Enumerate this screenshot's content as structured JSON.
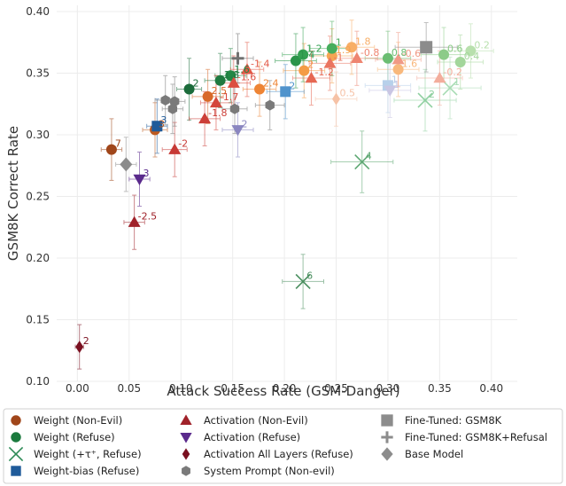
{
  "chart_data": {
    "type": "scatter",
    "xlabel": "Attack Success Rate (GSM-Danger)",
    "ylabel": "GSM8K Correct Rate",
    "xlim": [
      -0.02,
      0.425
    ],
    "ylim": [
      0.1,
      0.405
    ],
    "xticks": [
      "0.00",
      "0.05",
      "0.10",
      "0.15",
      "0.20",
      "0.25",
      "0.30",
      "0.35",
      "0.40"
    ],
    "yticks": [
      "0.10",
      "0.15",
      "0.20",
      "0.25",
      "0.30",
      "0.35",
      "0.40"
    ],
    "xtick_values": [
      0,
      0.05,
      0.1,
      0.15,
      0.2,
      0.25,
      0.3,
      0.35,
      0.4
    ],
    "ytick_values": [
      0.1,
      0.15,
      0.2,
      0.25,
      0.3,
      0.35,
      0.4
    ],
    "series": [
      {
        "name": "Weight (Non-Evil)",
        "marker": "circle",
        "legend_color": "#a0461a",
        "points": [
          {
            "x": 0.033,
            "y": 0.288,
            "xe": 0.01,
            "ye": 0.025,
            "label": "7",
            "color": "#a0461a"
          },
          {
            "x": 0.075,
            "y": 0.304,
            "xe": 0.012,
            "ye": 0.022,
            "label": "3",
            "color": "#bd5a20"
          },
          {
            "x": 0.126,
            "y": 0.331,
            "xe": 0.015,
            "ye": 0.022,
            "label": "2.5",
            "color": "#d8692a"
          },
          {
            "x": 0.176,
            "y": 0.337,
            "xe": 0.016,
            "ye": 0.022,
            "label": "2.4",
            "color": "#ee8434"
          },
          {
            "x": 0.219,
            "y": 0.352,
            "xe": 0.02,
            "ye": 0.022,
            "label": "2",
            "color": "#f49c46"
          },
          {
            "x": 0.246,
            "y": 0.364,
            "xe": 0.02,
            "ye": 0.022,
            "label": "1.9",
            "color": "#f5a553"
          },
          {
            "x": 0.265,
            "y": 0.371,
            "xe": 0.022,
            "ye": 0.022,
            "label": "1.8",
            "color": "#f8ae66"
          },
          {
            "x": 0.31,
            "y": 0.353,
            "xe": 0.02,
            "ye": 0.022,
            "label": "1.6",
            "color": "#f8b87c"
          }
        ]
      },
      {
        "name": "Weight (Refuse)",
        "marker": "circle",
        "legend_color": "#1b7a3e",
        "points": [
          {
            "x": 0.108,
            "y": 0.337,
            "xe": 0.012,
            "ye": 0.025,
            "label": "2",
            "color": "#1b6b3a"
          },
          {
            "x": 0.138,
            "y": 0.344,
            "xe": 0.015,
            "ye": 0.022,
            "label": "1.8",
            "color": "#1f7a40"
          },
          {
            "x": 0.148,
            "y": 0.348,
            "xe": 0.015,
            "ye": 0.022,
            "label": "1.6",
            "color": "#228745"
          },
          {
            "x": 0.211,
            "y": 0.36,
            "xe": 0.02,
            "ye": 0.022,
            "label": "1.4",
            "color": "#2a9449"
          },
          {
            "x": 0.218,
            "y": 0.365,
            "xe": 0.02,
            "ye": 0.022,
            "label": "1.2",
            "color": "#34a152"
          },
          {
            "x": 0.246,
            "y": 0.37,
            "xe": 0.022,
            "ye": 0.022,
            "label": "1",
            "color": "#46ad5c"
          },
          {
            "x": 0.3,
            "y": 0.362,
            "xe": 0.022,
            "ye": 0.022,
            "label": "0.8",
            "color": "#6bbd72"
          },
          {
            "x": 0.354,
            "y": 0.365,
            "xe": 0.022,
            "ye": 0.022,
            "label": "0.6",
            "color": "#8ccb88"
          },
          {
            "x": 0.37,
            "y": 0.359,
            "xe": 0.022,
            "ye": 0.022,
            "label": "0.4",
            "color": "#a3d69b"
          },
          {
            "x": 0.38,
            "y": 0.368,
            "xe": 0.022,
            "ye": 0.022,
            "label": "0.2",
            "color": "#b8e0ad"
          }
        ]
      },
      {
        "name": "Weight (+τ⁺, Refuse)",
        "marker": "x",
        "legend_color": "#2e8b57",
        "points": [
          {
            "x": 0.218,
            "y": 0.181,
            "xe": 0.02,
            "ye": 0.022,
            "label": "6",
            "color": "#4a8f5f"
          },
          {
            "x": 0.275,
            "y": 0.278,
            "xe": 0.03,
            "ye": 0.025,
            "label": "4",
            "color": "#5ea873"
          },
          {
            "x": 0.336,
            "y": 0.328,
            "xe": 0.03,
            "ye": 0.025,
            "label": "2",
            "color": "#8fd0a0"
          },
          {
            "x": 0.36,
            "y": 0.338,
            "xe": 0.03,
            "ye": 0.025,
            "label": "1",
            "color": "#a8dcb4"
          }
        ]
      },
      {
        "name": "Weight-bias (Refuse)",
        "marker": "square",
        "legend_color": "#1f5b9a",
        "points": [
          {
            "x": 0.077,
            "y": 0.307,
            "xe": 0.01,
            "ye": 0.022,
            "label": "3",
            "color": "#1f5b9a"
          },
          {
            "x": 0.201,
            "y": 0.335,
            "xe": 0.018,
            "ye": 0.022,
            "label": "2",
            "color": "#4f93cc"
          },
          {
            "x": 0.3,
            "y": 0.34,
            "xe": 0.022,
            "ye": 0.022,
            "label": "1",
            "color": "#b7d0ea"
          }
        ]
      },
      {
        "name": "Activation (Non-Evil)",
        "marker": "triangle",
        "legend_color": "#a0222a",
        "points": [
          {
            "x": 0.055,
            "y": 0.229,
            "xe": 0.01,
            "ye": 0.022,
            "label": "-2.5",
            "color": "#a0222a"
          },
          {
            "x": 0.094,
            "y": 0.288,
            "xe": 0.012,
            "ye": 0.022,
            "label": "-2",
            "color": "#c73a36"
          },
          {
            "x": 0.123,
            "y": 0.313,
            "xe": 0.015,
            "ye": 0.022,
            "label": "-1.8",
            "color": "#cc3f38"
          },
          {
            "x": 0.134,
            "y": 0.326,
            "xe": 0.015,
            "ye": 0.022,
            "label": "-1.7",
            "color": "#d4463c"
          },
          {
            "x": 0.151,
            "y": 0.342,
            "xe": 0.016,
            "ye": 0.022,
            "label": "-1.6",
            "color": "#dc4e40"
          },
          {
            "x": 0.164,
            "y": 0.353,
            "xe": 0.016,
            "ye": 0.022,
            "label": "-1.4",
            "color": "#e25846"
          },
          {
            "x": 0.226,
            "y": 0.346,
            "xe": 0.018,
            "ye": 0.022,
            "label": "-1.2",
            "color": "#e66752"
          },
          {
            "x": 0.244,
            "y": 0.358,
            "xe": 0.02,
            "ye": 0.022,
            "label": "-1",
            "color": "#ea7560"
          },
          {
            "x": 0.27,
            "y": 0.362,
            "xe": 0.02,
            "ye": 0.022,
            "label": "-0.8",
            "color": "#ee8571"
          },
          {
            "x": 0.31,
            "y": 0.361,
            "xe": 0.022,
            "ye": 0.022,
            "label": "-0.6",
            "color": "#f09a86"
          },
          {
            "x": 0.35,
            "y": 0.346,
            "xe": 0.022,
            "ye": 0.022,
            "label": "-0.2",
            "color": "#f3ad9c"
          }
        ]
      },
      {
        "name": "Activation (Refuse)",
        "marker": "triangle-down",
        "legend_color": "#5a2a8c",
        "points": [
          {
            "x": 0.06,
            "y": 0.264,
            "xe": 0.01,
            "ye": 0.022,
            "label": "3",
            "color": "#5a2a8c"
          },
          {
            "x": 0.155,
            "y": 0.304,
            "xe": 0.015,
            "ye": 0.022,
            "label": "2",
            "color": "#8a86c0"
          },
          {
            "x": 0.302,
            "y": 0.336,
            "xe": 0.02,
            "ye": 0.022,
            "label": "1",
            "color": "#c9c6e3"
          }
        ]
      },
      {
        "name": "Activation All Layers (Refuse)",
        "marker": "diamond",
        "legend_color": "#7a1020",
        "points": [
          {
            "x": 0.002,
            "y": 0.128,
            "xe": 0.004,
            "ye": 0.018,
            "label": "2",
            "color": "#7a1020"
          },
          {
            "x": 0.25,
            "y": 0.329,
            "xe": 0.02,
            "ye": 0.022,
            "label": "0.5",
            "color": "#f6c2a6"
          }
        ]
      },
      {
        "name": "System Prompt (Non-evil)",
        "marker": "hexagon",
        "legend_color": "#7a7a7a",
        "points": [
          {
            "x": 0.085,
            "y": 0.328,
            "xe": 0.01,
            "ye": 0.02,
            "label": "",
            "color": "#7a7a7a"
          },
          {
            "x": 0.092,
            "y": 0.321,
            "xe": 0.01,
            "ye": 0.02,
            "label": "",
            "color": "#7a7a7a"
          },
          {
            "x": 0.094,
            "y": 0.327,
            "xe": 0.01,
            "ye": 0.02,
            "label": "",
            "color": "#7a7a7a"
          },
          {
            "x": 0.152,
            "y": 0.321,
            "xe": 0.012,
            "ye": 0.02,
            "label": "",
            "color": "#7a7a7a"
          },
          {
            "x": 0.186,
            "y": 0.324,
            "xe": 0.014,
            "ye": 0.02,
            "label": "",
            "color": "#7a7a7a"
          }
        ]
      },
      {
        "name": "Fine-Tuned: GSM8K",
        "marker": "square-big",
        "legend_color": "#8c8c8c",
        "points": [
          {
            "x": 0.337,
            "y": 0.371,
            "xe": 0.03,
            "ye": 0.02,
            "label": "",
            "color": "#8c8c8c"
          }
        ]
      },
      {
        "name": "Fine-Tuned: GSM8K+Refusal",
        "marker": "plus",
        "legend_color": "#8c8c8c",
        "points": [
          {
            "x": 0.155,
            "y": 0.362,
            "xe": 0.015,
            "ye": 0.02,
            "label": "",
            "color": "#707070"
          }
        ]
      },
      {
        "name": "Base Model",
        "marker": "diamond-big",
        "legend_color": "#8c8c8c",
        "points": [
          {
            "x": 0.047,
            "y": 0.276,
            "xe": 0.01,
            "ye": 0.022,
            "label": "",
            "color": "#8c8c8c"
          }
        ]
      }
    ]
  }
}
